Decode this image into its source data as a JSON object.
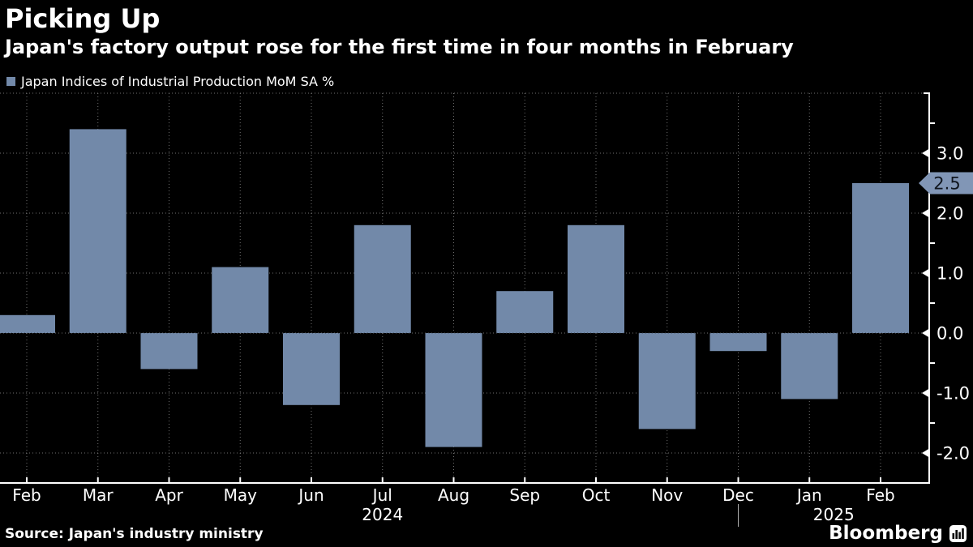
{
  "header": {
    "title": "Picking Up",
    "subtitle": "Japan's factory output rose for the first time in four months in February"
  },
  "legend": {
    "label": "Japan Indices of Industrial Production MoM SA %"
  },
  "chart_data": {
    "type": "bar",
    "title": "Picking Up",
    "subtitle": "Japan's factory output rose for the first time in four months in February",
    "series_name": "Japan Indices of Industrial Production MoM SA %",
    "categories": [
      "Feb",
      "Mar",
      "Apr",
      "May",
      "Jun",
      "Jul",
      "Aug",
      "Sep",
      "Oct",
      "Nov",
      "Dec",
      "Jan",
      "Feb"
    ],
    "values": [
      0.3,
      3.4,
      -0.6,
      1.1,
      -1.2,
      1.8,
      -1.9,
      0.7,
      1.8,
      -1.6,
      -0.3,
      -1.1,
      2.5
    ],
    "unit": "%",
    "ylim": [
      -2.5,
      4.0
    ],
    "grid": "dotted",
    "legend_position": "top-left",
    "y_major_ticks": [
      "3.0",
      "2.0",
      "1.0",
      "0.0",
      "-1.0",
      "-2.0"
    ],
    "y_minor_ticks": [
      3.5,
      1.5,
      0.5,
      -0.5,
      -1.5
    ],
    "gridlines": [
      4.0,
      3.0,
      2.0,
      1.0,
      0.0,
      -1.0,
      -2.0
    ],
    "year_groups": [
      {
        "label": "2024",
        "from_index": 0,
        "to_index": 10
      },
      {
        "label": "2025",
        "from_index": 11,
        "to_index": 12
      }
    ],
    "last_value_label": "2.5",
    "bar_color": "#7289a9",
    "badge_color": "#8196b6",
    "badge_text_color": "#10161f",
    "axis_color": "#ffffff",
    "gridline_color": "#8c8c8c"
  },
  "footer": {
    "source": "Source: Japan's industry ministry",
    "brand": "Bloomberg"
  }
}
